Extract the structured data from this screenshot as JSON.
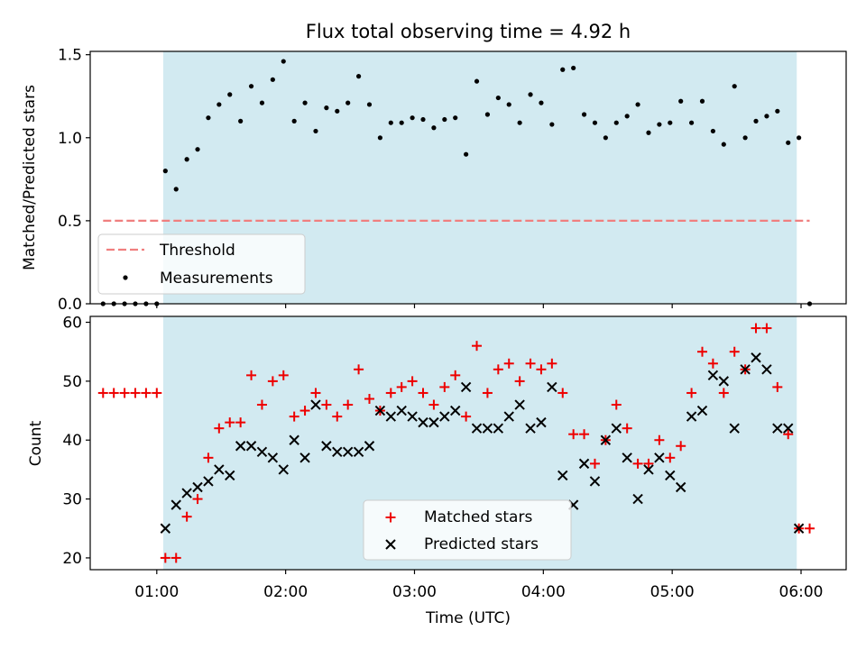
{
  "title": "Flux total observing time = 4.92 h",
  "colors": {
    "shade": "#add8e6",
    "threshold": "#f07f7f",
    "measurements": "#000000",
    "matched": "#ee0000",
    "predicted": "#000000"
  },
  "chart_data": [
    {
      "type": "scatter",
      "panel": "top",
      "title": "Flux total observing time = 4.92 h",
      "xlabel": "",
      "ylabel": "Matched/Predicted stars",
      "xlim": [
        "00:29",
        "06:21"
      ],
      "ylim": [
        0,
        1.52
      ],
      "yticks": [
        "0.0",
        "0.5",
        "1.0",
        "1.5"
      ],
      "shaded_span": [
        "01:03",
        "05:58"
      ],
      "grid": false,
      "legend_position": "lower left",
      "threshold": {
        "name": "Threshold",
        "y": 0.5,
        "x_range": [
          "00:35",
          "06:04"
        ],
        "style": "dashed"
      },
      "series": [
        {
          "name": "Measurements",
          "marker": "dot",
          "x": [
            "00:35",
            "00:40",
            "00:45",
            "00:50",
            "00:55",
            "01:00",
            "01:04",
            "01:09",
            "01:14",
            "01:19",
            "01:24",
            "01:29",
            "01:34",
            "01:39",
            "01:44",
            "01:49",
            "01:54",
            "01:59",
            "02:04",
            "02:09",
            "02:14",
            "02:19",
            "02:24",
            "02:29",
            "02:34",
            "02:39",
            "02:44",
            "02:49",
            "02:54",
            "02:59",
            "03:04",
            "03:09",
            "03:14",
            "03:19",
            "03:24",
            "03:29",
            "03:34",
            "03:39",
            "03:44",
            "03:49",
            "03:54",
            "03:59",
            "04:04",
            "04:09",
            "04:14",
            "04:19",
            "04:24",
            "04:29",
            "04:34",
            "04:39",
            "04:44",
            "04:49",
            "04:54",
            "04:59",
            "05:04",
            "05:09",
            "05:14",
            "05:19",
            "05:24",
            "05:29",
            "05:34",
            "05:39",
            "05:44",
            "05:49",
            "05:54",
            "05:59",
            "06:04"
          ],
          "y": [
            0,
            0,
            0,
            0,
            0,
            0,
            0.8,
            0.69,
            0.87,
            0.93,
            1.12,
            1.2,
            1.26,
            1.1,
            1.31,
            1.21,
            1.35,
            1.46,
            1.1,
            1.21,
            1.04,
            1.18,
            1.16,
            1.21,
            1.37,
            1.2,
            1.0,
            1.09,
            1.09,
            1.12,
            1.11,
            1.06,
            1.11,
            1.12,
            0.9,
            1.34,
            1.14,
            1.24,
            1.2,
            1.09,
            1.26,
            1.21,
            1.08,
            1.41,
            1.42,
            1.14,
            1.09,
            1.0,
            1.09,
            1.13,
            1.2,
            1.03,
            1.08,
            1.09,
            1.22,
            1.09,
            1.22,
            1.04,
            0.96,
            1.31,
            1.0,
            1.1,
            1.13,
            1.16,
            0.97,
            1.0,
            0
          ]
        }
      ]
    },
    {
      "type": "scatter",
      "panel": "bottom",
      "xlabel": "Time (UTC)",
      "ylabel": "Count",
      "xlim": [
        "00:29",
        "06:21"
      ],
      "ylim": [
        18,
        61
      ],
      "xticks": [
        "01:00",
        "02:00",
        "03:00",
        "04:00",
        "05:00",
        "06:00"
      ],
      "yticks": [
        "20",
        "30",
        "40",
        "50",
        "60"
      ],
      "shaded_span": [
        "01:03",
        "05:58"
      ],
      "grid": false,
      "legend_position": "lower center",
      "series": [
        {
          "name": "Matched stars",
          "marker": "plus",
          "x": [
            "00:35",
            "00:40",
            "00:45",
            "00:50",
            "00:55",
            "01:00",
            "01:04",
            "01:09",
            "01:14",
            "01:19",
            "01:24",
            "01:29",
            "01:34",
            "01:39",
            "01:44",
            "01:49",
            "01:54",
            "01:59",
            "02:04",
            "02:09",
            "02:14",
            "02:19",
            "02:24",
            "02:29",
            "02:34",
            "02:39",
            "02:44",
            "02:49",
            "02:54",
            "02:59",
            "03:04",
            "03:09",
            "03:14",
            "03:19",
            "03:24",
            "03:29",
            "03:34",
            "03:39",
            "03:44",
            "03:49",
            "03:54",
            "03:59",
            "04:04",
            "04:09",
            "04:14",
            "04:19",
            "04:24",
            "04:29",
            "04:34",
            "04:39",
            "04:44",
            "04:49",
            "04:54",
            "04:59",
            "05:04",
            "05:09",
            "05:14",
            "05:19",
            "05:24",
            "05:29",
            "05:34",
            "05:39",
            "05:44",
            "05:49",
            "05:54",
            "05:59",
            "06:04"
          ],
          "y": [
            48,
            48,
            48,
            48,
            48,
            48,
            20,
            20,
            27,
            30,
            37,
            42,
            43,
            43,
            51,
            46,
            50,
            51,
            44,
            45,
            48,
            46,
            44,
            46,
            52,
            47,
            45,
            48,
            49,
            50,
            48,
            46,
            49,
            51,
            44,
            56,
            48,
            52,
            53,
            50,
            53,
            52,
            53,
            48,
            41,
            41,
            36,
            40,
            46,
            42,
            36,
            36,
            40,
            37,
            39,
            48,
            55,
            53,
            48,
            55,
            52,
            59,
            59,
            49,
            41,
            25,
            25
          ]
        },
        {
          "name": "Predicted stars",
          "marker": "x",
          "x": [
            "01:04",
            "01:09",
            "01:14",
            "01:19",
            "01:24",
            "01:29",
            "01:34",
            "01:39",
            "01:44",
            "01:49",
            "01:54",
            "01:59",
            "02:04",
            "02:09",
            "02:14",
            "02:19",
            "02:24",
            "02:29",
            "02:34",
            "02:39",
            "02:44",
            "02:49",
            "02:54",
            "02:59",
            "03:04",
            "03:09",
            "03:14",
            "03:19",
            "03:24",
            "03:29",
            "03:34",
            "03:39",
            "03:44",
            "03:49",
            "03:54",
            "03:59",
            "04:04",
            "04:09",
            "04:14",
            "04:19",
            "04:24",
            "04:29",
            "04:34",
            "04:39",
            "04:44",
            "04:49",
            "04:54",
            "04:59",
            "05:04",
            "05:09",
            "05:14",
            "05:19",
            "05:24",
            "05:29",
            "05:34",
            "05:39",
            "05:44",
            "05:49",
            "05:54",
            "05:59"
          ],
          "y": [
            25,
            29,
            31,
            32,
            33,
            35,
            34,
            39,
            39,
            38,
            37,
            35,
            40,
            37,
            46,
            39,
            38,
            38,
            38,
            39,
            45,
            44,
            45,
            44,
            43,
            43,
            44,
            45,
            49,
            42,
            42,
            42,
            44,
            46,
            42,
            43,
            49,
            34,
            29,
            36,
            33,
            40,
            42,
            37,
            30,
            35,
            37,
            34,
            32,
            44,
            45,
            51,
            50,
            42,
            52,
            54,
            52,
            42,
            42,
            25
          ]
        }
      ]
    }
  ]
}
